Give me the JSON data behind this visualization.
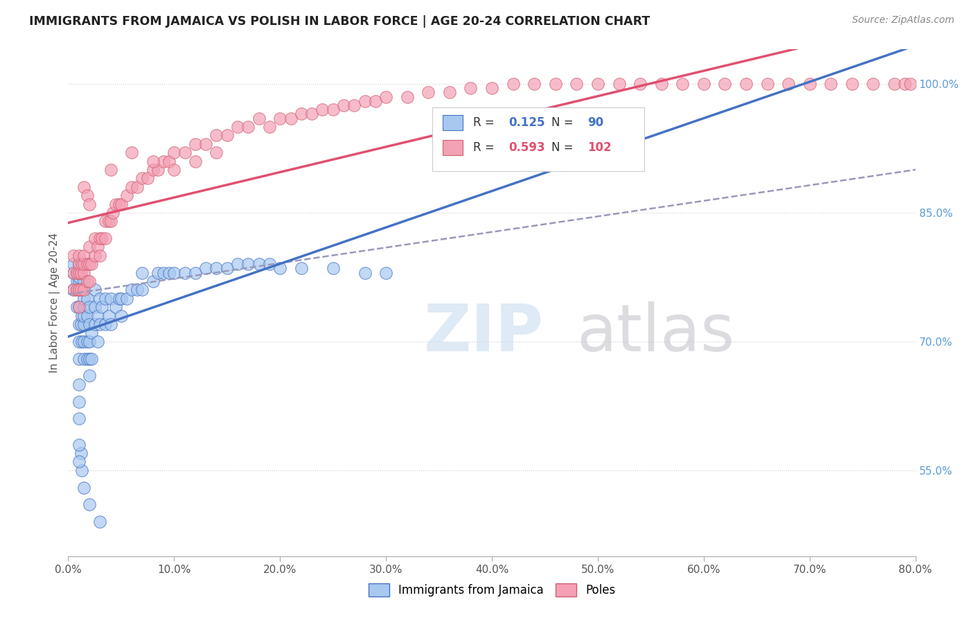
{
  "title": "IMMIGRANTS FROM JAMAICA VS POLISH IN LABOR FORCE | AGE 20-24 CORRELATION CHART",
  "source": "Source: ZipAtlas.com",
  "ylabel": "In Labor Force | Age 20-24",
  "xlim": [
    0.0,
    0.8
  ],
  "ylim": [
    0.45,
    1.04
  ],
  "r_jamaica": 0.125,
  "n_jamaica": 90,
  "r_poles": 0.593,
  "n_poles": 102,
  "color_jamaica": "#A8C8F0",
  "color_poles": "#F4A0B5",
  "line_color_jamaica": "#4472C4",
  "line_color_poles": "#E05070",
  "line_color_jamaica_dashed": "#8888BB",
  "legend_labels": [
    "Immigrants from Jamaica",
    "Poles"
  ],
  "jamaica_x": [
    0.005,
    0.005,
    0.005,
    0.008,
    0.008,
    0.008,
    0.008,
    0.01,
    0.01,
    0.01,
    0.01,
    0.01,
    0.01,
    0.01,
    0.01,
    0.01,
    0.012,
    0.012,
    0.013,
    0.013,
    0.015,
    0.015,
    0.015,
    0.015,
    0.015,
    0.015,
    0.015,
    0.015,
    0.018,
    0.018,
    0.018,
    0.018,
    0.02,
    0.02,
    0.02,
    0.02,
    0.02,
    0.022,
    0.022,
    0.025,
    0.025,
    0.025,
    0.028,
    0.028,
    0.03,
    0.03,
    0.032,
    0.035,
    0.035,
    0.038,
    0.04,
    0.04,
    0.045,
    0.048,
    0.05,
    0.05,
    0.055,
    0.06,
    0.065,
    0.07,
    0.07,
    0.08,
    0.085,
    0.09,
    0.095,
    0.1,
    0.11,
    0.12,
    0.13,
    0.14,
    0.15,
    0.16,
    0.17,
    0.18,
    0.19,
    0.2,
    0.22,
    0.25,
    0.28,
    0.3,
    0.03,
    0.02,
    0.015,
    0.013,
    0.012,
    0.01,
    0.01,
    0.01,
    0.01,
    0.01
  ],
  "jamaica_y": [
    0.76,
    0.78,
    0.79,
    0.74,
    0.76,
    0.77,
    0.78,
    0.68,
    0.7,
    0.72,
    0.74,
    0.76,
    0.77,
    0.775,
    0.78,
    0.79,
    0.72,
    0.76,
    0.7,
    0.73,
    0.68,
    0.7,
    0.72,
    0.73,
    0.74,
    0.75,
    0.76,
    0.77,
    0.68,
    0.7,
    0.73,
    0.75,
    0.66,
    0.68,
    0.7,
    0.72,
    0.74,
    0.68,
    0.71,
    0.72,
    0.74,
    0.76,
    0.7,
    0.73,
    0.72,
    0.75,
    0.74,
    0.72,
    0.75,
    0.73,
    0.72,
    0.75,
    0.74,
    0.75,
    0.73,
    0.75,
    0.75,
    0.76,
    0.76,
    0.76,
    0.78,
    0.77,
    0.78,
    0.78,
    0.78,
    0.78,
    0.78,
    0.78,
    0.785,
    0.785,
    0.785,
    0.79,
    0.79,
    0.79,
    0.79,
    0.785,
    0.785,
    0.785,
    0.78,
    0.78,
    0.49,
    0.51,
    0.53,
    0.55,
    0.57,
    0.56,
    0.58,
    0.61,
    0.63,
    0.65
  ],
  "poles_x": [
    0.005,
    0.005,
    0.005,
    0.008,
    0.008,
    0.01,
    0.01,
    0.01,
    0.01,
    0.01,
    0.012,
    0.012,
    0.013,
    0.015,
    0.015,
    0.015,
    0.015,
    0.018,
    0.018,
    0.02,
    0.02,
    0.02,
    0.022,
    0.025,
    0.025,
    0.028,
    0.03,
    0.03,
    0.032,
    0.035,
    0.035,
    0.038,
    0.04,
    0.042,
    0.045,
    0.048,
    0.05,
    0.055,
    0.06,
    0.065,
    0.07,
    0.075,
    0.08,
    0.085,
    0.09,
    0.095,
    0.1,
    0.11,
    0.12,
    0.13,
    0.14,
    0.15,
    0.16,
    0.17,
    0.18,
    0.19,
    0.2,
    0.21,
    0.22,
    0.23,
    0.24,
    0.25,
    0.26,
    0.27,
    0.28,
    0.29,
    0.3,
    0.32,
    0.34,
    0.36,
    0.38,
    0.4,
    0.42,
    0.44,
    0.46,
    0.48,
    0.5,
    0.52,
    0.54,
    0.56,
    0.58,
    0.6,
    0.62,
    0.64,
    0.66,
    0.68,
    0.7,
    0.72,
    0.74,
    0.76,
    0.78,
    0.79,
    0.795,
    0.015,
    0.018,
    0.02,
    0.04,
    0.06,
    0.08,
    0.1,
    0.12,
    0.14
  ],
  "poles_y": [
    0.76,
    0.78,
    0.8,
    0.76,
    0.78,
    0.74,
    0.76,
    0.78,
    0.79,
    0.8,
    0.76,
    0.78,
    0.79,
    0.76,
    0.78,
    0.79,
    0.8,
    0.77,
    0.79,
    0.77,
    0.79,
    0.81,
    0.79,
    0.8,
    0.82,
    0.81,
    0.8,
    0.82,
    0.82,
    0.82,
    0.84,
    0.84,
    0.84,
    0.85,
    0.86,
    0.86,
    0.86,
    0.87,
    0.88,
    0.88,
    0.89,
    0.89,
    0.9,
    0.9,
    0.91,
    0.91,
    0.92,
    0.92,
    0.93,
    0.93,
    0.94,
    0.94,
    0.95,
    0.95,
    0.96,
    0.95,
    0.96,
    0.96,
    0.965,
    0.965,
    0.97,
    0.97,
    0.975,
    0.975,
    0.98,
    0.98,
    0.985,
    0.985,
    0.99,
    0.99,
    0.995,
    0.995,
    1.0,
    1.0,
    1.0,
    1.0,
    1.0,
    1.0,
    1.0,
    1.0,
    1.0,
    1.0,
    1.0,
    1.0,
    1.0,
    1.0,
    1.0,
    1.0,
    1.0,
    1.0,
    1.0,
    1.0,
    1.0,
    0.88,
    0.87,
    0.86,
    0.9,
    0.92,
    0.91,
    0.9,
    0.91,
    0.92
  ]
}
